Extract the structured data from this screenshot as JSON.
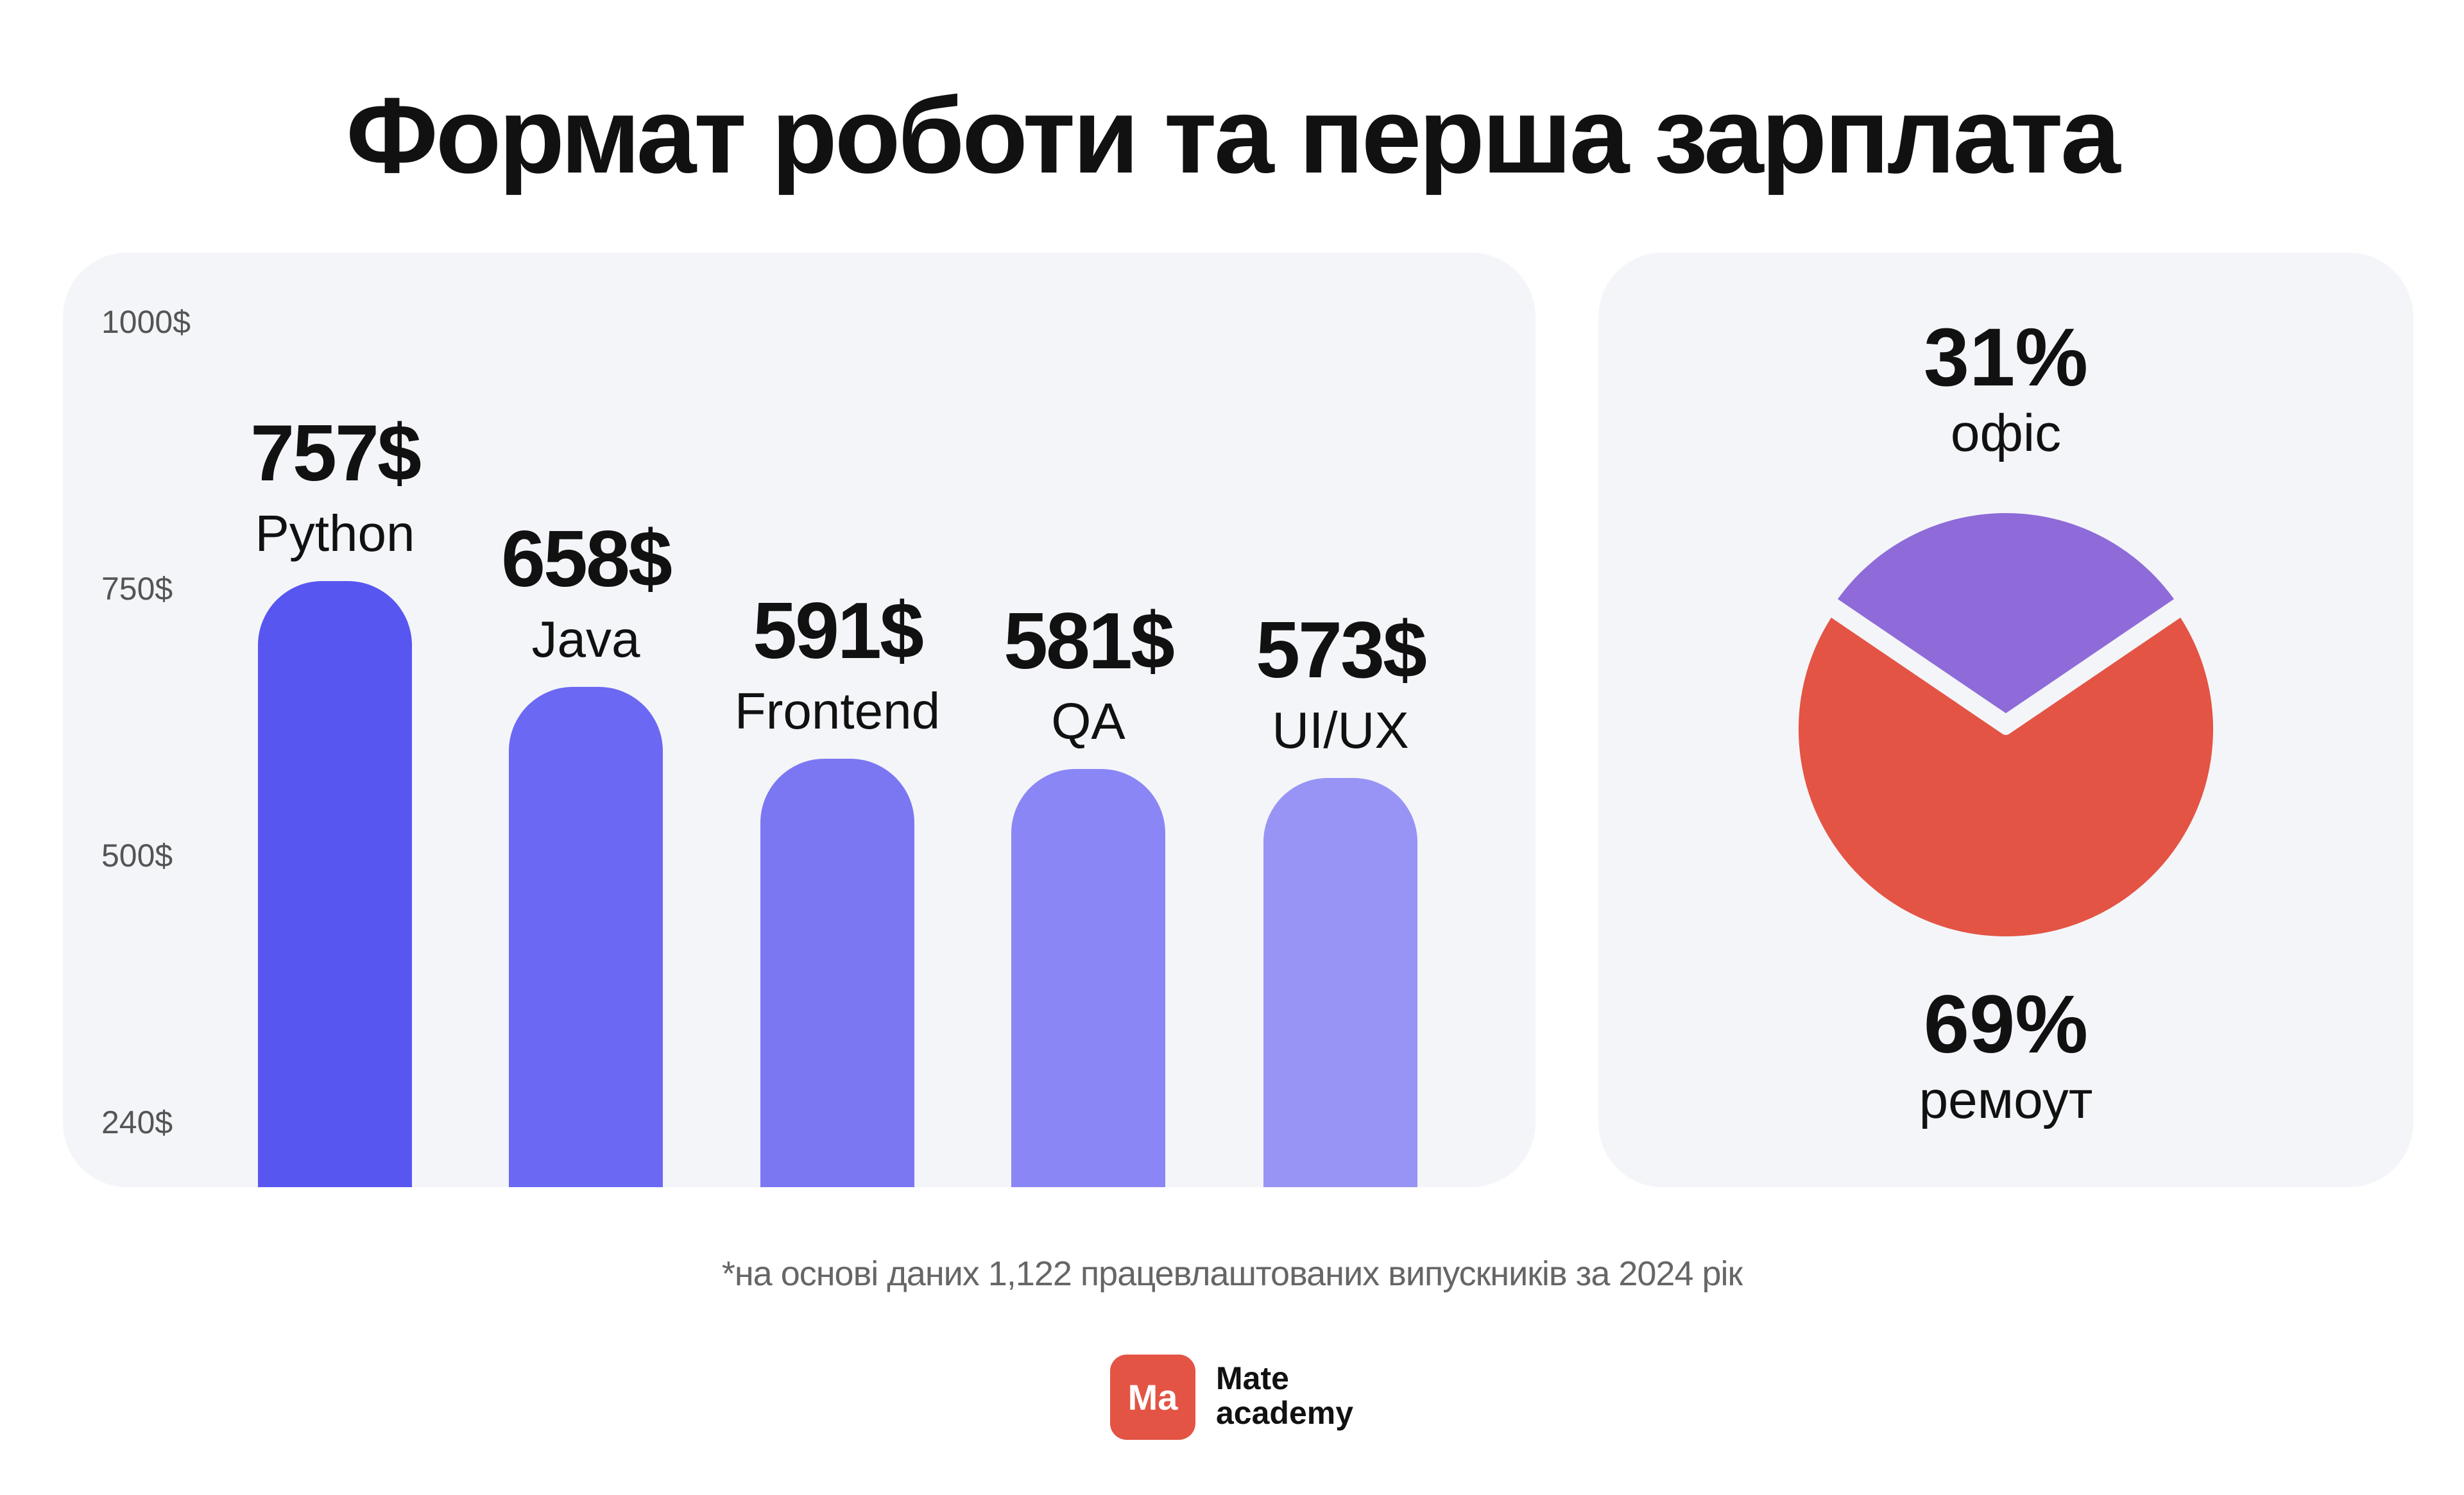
{
  "title": "Формат роботи та перша зарплата",
  "footnote": "*на основі даних 1,122 працевлаштованих випускників за 2024 рік",
  "logo": {
    "mark": "Ma",
    "line1": "Mate",
    "line2": "academy",
    "color": "#e35444"
  },
  "chart_data": [
    {
      "type": "bar",
      "categories": [
        "Python",
        "Java",
        "Frontend",
        "QA",
        "UI/UX"
      ],
      "values": [
        757,
        658,
        591,
        581,
        573
      ],
      "value_labels": [
        "757$",
        "658$",
        "591$",
        "581$",
        "573$"
      ],
      "colors": [
        "#5856f0",
        "#6b68f3",
        "#7b77f2",
        "#8a86f5",
        "#9894f5"
      ],
      "yticks": [
        {
          "value": 1000,
          "label": "1000$"
        },
        {
          "value": 750,
          "label": "750$"
        },
        {
          "value": 500,
          "label": "500$"
        },
        {
          "value": 240,
          "label": "240$"
        }
      ],
      "ylim": [
        240,
        1000
      ],
      "grid": false
    },
    {
      "type": "pie",
      "slices": [
        {
          "label": "офіс",
          "value": 31,
          "value_label": "31%",
          "color": "#8e6bd8"
        },
        {
          "label": "ремоут",
          "value": 69,
          "value_label": "69%",
          "color": "#e35444"
        }
      ]
    }
  ]
}
